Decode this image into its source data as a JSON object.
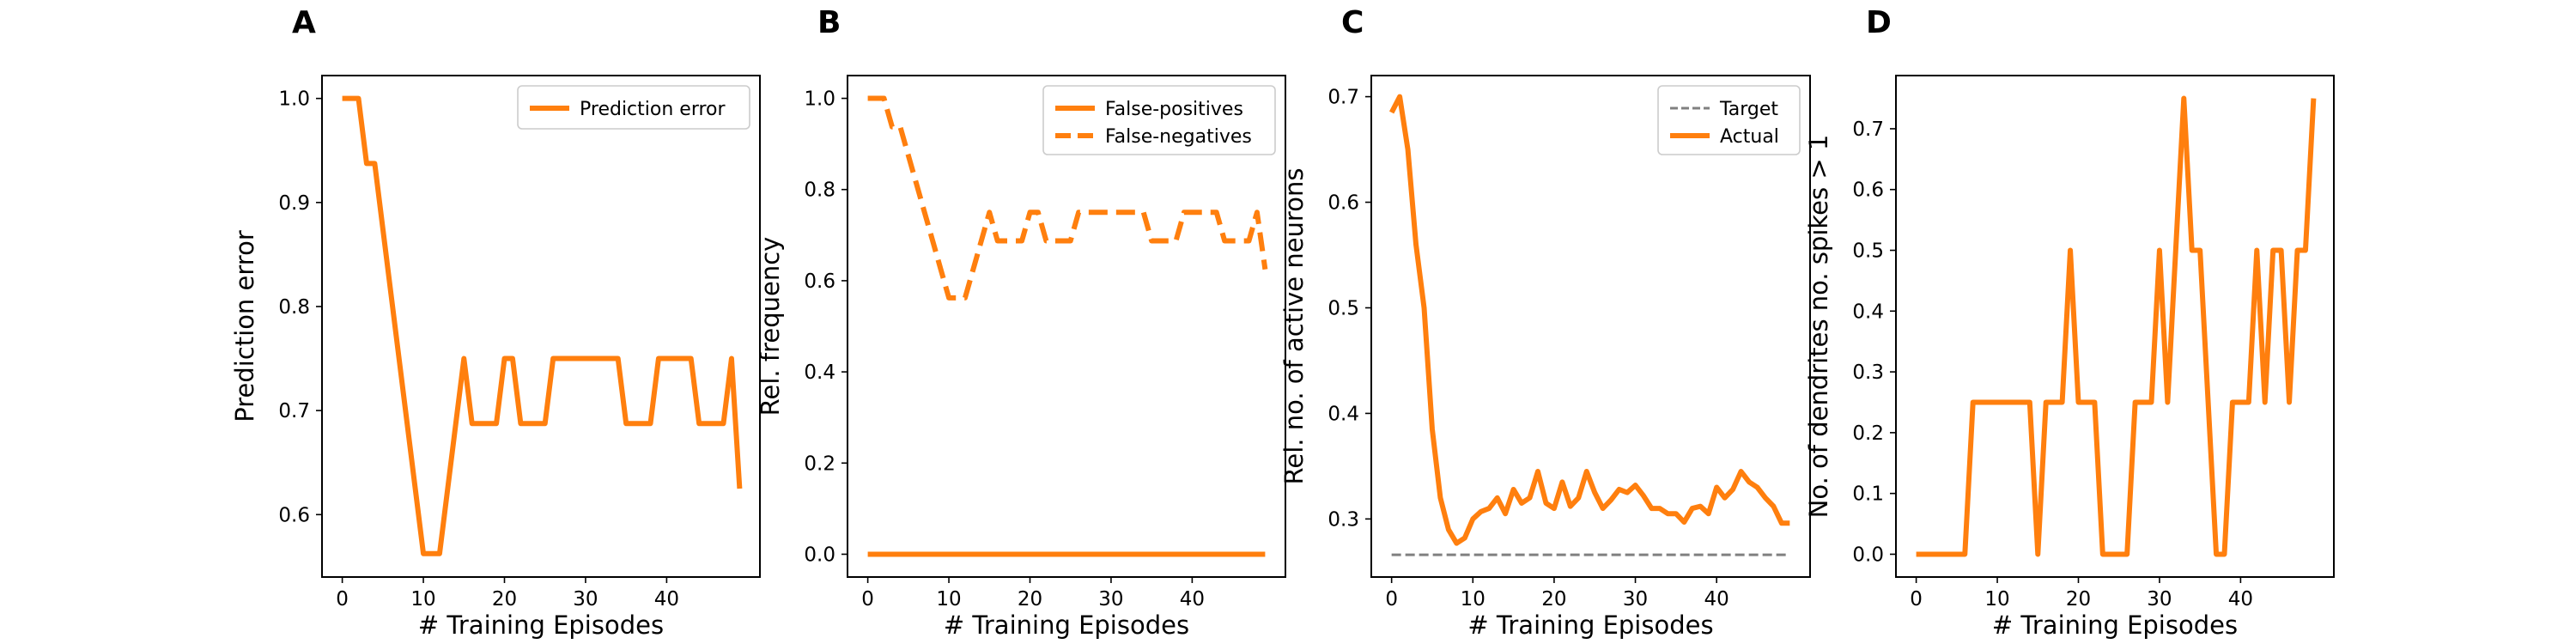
{
  "colors": {
    "series": "#ff7f0e",
    "target": "#808080"
  },
  "chart_data": [
    {
      "type": "line",
      "panel_label": "A",
      "xlabel": "# Training Episodes",
      "ylabel": "Prediction error",
      "xlim": [
        -2.5,
        51.5
      ],
      "ylim": [
        0.54,
        1.022
      ],
      "xticks": [
        0,
        10,
        20,
        30,
        40
      ],
      "xtick_labels": [
        "0",
        "10",
        "20",
        "30",
        "40"
      ],
      "yticks": [
        0.6,
        0.7,
        0.8,
        0.9,
        1.0
      ],
      "ytick_labels": [
        "0.6",
        "0.7",
        "0.8",
        "0.9",
        "1.0"
      ],
      "legend": "top-right",
      "series": [
        {
          "name": "Prediction error",
          "style": "solid",
          "x": [
            0,
            1,
            2,
            3,
            4,
            5,
            6,
            7,
            8,
            9,
            10,
            11,
            12,
            13,
            14,
            15,
            16,
            17,
            18,
            19,
            20,
            21,
            22,
            23,
            24,
            25,
            26,
            27,
            28,
            29,
            30,
            31,
            32,
            33,
            34,
            35,
            36,
            37,
            38,
            39,
            40,
            41,
            42,
            43,
            44,
            45,
            46,
            47,
            48,
            49
          ],
          "y": [
            1.0,
            1.0,
            1.0,
            0.9375,
            0.9375,
            0.875,
            0.8125,
            0.75,
            0.6875,
            0.625,
            0.5625,
            0.5625,
            0.5625,
            0.625,
            0.6875,
            0.75,
            0.6875,
            0.6875,
            0.6875,
            0.6875,
            0.75,
            0.75,
            0.6875,
            0.6875,
            0.6875,
            0.6875,
            0.75,
            0.75,
            0.75,
            0.75,
            0.75,
            0.75,
            0.75,
            0.75,
            0.75,
            0.6875,
            0.6875,
            0.6875,
            0.6875,
            0.75,
            0.75,
            0.75,
            0.75,
            0.75,
            0.6875,
            0.6875,
            0.6875,
            0.6875,
            0.75,
            0.625
          ]
        }
      ]
    },
    {
      "type": "line",
      "panel_label": "B",
      "xlabel": "# Training Episodes",
      "ylabel": "Rel. frequency",
      "xlim": [
        -2.5,
        51.5
      ],
      "ylim": [
        -0.05,
        1.05
      ],
      "xticks": [
        0,
        10,
        20,
        30,
        40
      ],
      "xtick_labels": [
        "0",
        "10",
        "20",
        "30",
        "40"
      ],
      "yticks": [
        0.0,
        0.2,
        0.4,
        0.6,
        0.8,
        1.0
      ],
      "ytick_labels": [
        "0.0",
        "0.2",
        "0.4",
        "0.6",
        "0.8",
        "1.0"
      ],
      "legend": "top-right",
      "series": [
        {
          "name": "False-positives",
          "style": "solid",
          "x": [
            0,
            1,
            2,
            3,
            4,
            5,
            6,
            7,
            8,
            9,
            10,
            11,
            12,
            13,
            14,
            15,
            16,
            17,
            18,
            19,
            20,
            21,
            22,
            23,
            24,
            25,
            26,
            27,
            28,
            29,
            30,
            31,
            32,
            33,
            34,
            35,
            36,
            37,
            38,
            39,
            40,
            41,
            42,
            43,
            44,
            45,
            46,
            47,
            48,
            49
          ],
          "y": [
            0,
            0,
            0,
            0,
            0,
            0,
            0,
            0,
            0,
            0,
            0,
            0,
            0,
            0,
            0,
            0,
            0,
            0,
            0,
            0,
            0,
            0,
            0,
            0,
            0,
            0,
            0,
            0,
            0,
            0,
            0,
            0,
            0,
            0,
            0,
            0,
            0,
            0,
            0,
            0,
            0,
            0,
            0,
            0,
            0,
            0,
            0,
            0,
            0,
            0
          ]
        },
        {
          "name": "False-negatives",
          "style": "dashed",
          "x": [
            0,
            1,
            2,
            3,
            4,
            5,
            6,
            7,
            8,
            9,
            10,
            11,
            12,
            13,
            14,
            15,
            16,
            17,
            18,
            19,
            20,
            21,
            22,
            23,
            24,
            25,
            26,
            27,
            28,
            29,
            30,
            31,
            32,
            33,
            34,
            35,
            36,
            37,
            38,
            39,
            40,
            41,
            42,
            43,
            44,
            45,
            46,
            47,
            48,
            49
          ],
          "y": [
            1.0,
            1.0,
            1.0,
            0.9375,
            0.9375,
            0.875,
            0.8125,
            0.75,
            0.6875,
            0.625,
            0.5625,
            0.5625,
            0.5625,
            0.625,
            0.6875,
            0.75,
            0.6875,
            0.6875,
            0.6875,
            0.6875,
            0.75,
            0.75,
            0.6875,
            0.6875,
            0.6875,
            0.6875,
            0.75,
            0.75,
            0.75,
            0.75,
            0.75,
            0.75,
            0.75,
            0.75,
            0.75,
            0.6875,
            0.6875,
            0.6875,
            0.6875,
            0.75,
            0.75,
            0.75,
            0.75,
            0.75,
            0.6875,
            0.6875,
            0.6875,
            0.6875,
            0.75,
            0.625
          ]
        }
      ]
    },
    {
      "type": "line",
      "panel_label": "C",
      "xlabel": "# Training Episodes",
      "ylabel": "Rel. no. of active neurons",
      "xlim": [
        -2.5,
        51.5
      ],
      "ylim": [
        0.245,
        0.72
      ],
      "xticks": [
        0,
        10,
        20,
        30,
        40
      ],
      "xtick_labels": [
        "0",
        "10",
        "20",
        "30",
        "40"
      ],
      "yticks": [
        0.3,
        0.4,
        0.5,
        0.6,
        0.7
      ],
      "ytick_labels": [
        "0.3",
        "0.4",
        "0.5",
        "0.6",
        "0.7"
      ],
      "legend": "top-right",
      "series": [
        {
          "name": "Target",
          "style": "dashed-gray",
          "x": [
            0,
            49
          ],
          "y": [
            0.266,
            0.266
          ]
        },
        {
          "name": "Actual",
          "style": "solid",
          "x": [
            0,
            1,
            2,
            3,
            4,
            5,
            6,
            7,
            8,
            9,
            10,
            11,
            12,
            13,
            14,
            15,
            16,
            17,
            18,
            19,
            20,
            21,
            22,
            23,
            24,
            25,
            26,
            27,
            28,
            29,
            30,
            31,
            32,
            33,
            34,
            35,
            36,
            37,
            38,
            39,
            40,
            41,
            42,
            43,
            44,
            45,
            46,
            47,
            48,
            49
          ],
          "y": [
            0.685,
            0.7,
            0.65,
            0.56,
            0.5,
            0.385,
            0.32,
            0.29,
            0.277,
            0.282,
            0.3,
            0.307,
            0.31,
            0.32,
            0.305,
            0.328,
            0.315,
            0.32,
            0.345,
            0.315,
            0.31,
            0.335,
            0.312,
            0.32,
            0.345,
            0.325,
            0.31,
            0.318,
            0.328,
            0.325,
            0.332,
            0.322,
            0.31,
            0.31,
            0.305,
            0.305,
            0.297,
            0.31,
            0.312,
            0.305,
            0.33,
            0.32,
            0.328,
            0.345,
            0.335,
            0.33,
            0.32,
            0.312,
            0.296,
            0.296
          ]
        }
      ]
    },
    {
      "type": "line",
      "panel_label": "D",
      "xlabel": "# Training Episodes",
      "ylabel": "No. of dendrites no. spikes > 1",
      "xlim": [
        -2.5,
        51.5
      ],
      "ylim": [
        -0.0375,
        0.7875
      ],
      "xticks": [
        0,
        10,
        20,
        30,
        40
      ],
      "xtick_labels": [
        "0",
        "10",
        "20",
        "30",
        "40"
      ],
      "yticks": [
        0.0,
        0.1,
        0.2,
        0.3,
        0.4,
        0.5,
        0.6,
        0.7
      ],
      "ytick_labels": [
        "0.0",
        "0.1",
        "0.2",
        "0.3",
        "0.4",
        "0.5",
        "0.6",
        "0.7"
      ],
      "legend": "none",
      "series": [
        {
          "style": "solid",
          "x": [
            0,
            1,
            2,
            3,
            4,
            5,
            6,
            7,
            8,
            9,
            10,
            11,
            12,
            13,
            14,
            15,
            16,
            17,
            18,
            19,
            20,
            21,
            22,
            23,
            24,
            25,
            26,
            27,
            28,
            29,
            30,
            31,
            32,
            33,
            34,
            35,
            36,
            37,
            38,
            39,
            40,
            41,
            42,
            43,
            44,
            45,
            46,
            47,
            48,
            49
          ],
          "y": [
            0,
            0,
            0,
            0,
            0,
            0,
            0,
            0.25,
            0.25,
            0.25,
            0.25,
            0.25,
            0.25,
            0.25,
            0.25,
            0,
            0.25,
            0.25,
            0.25,
            0.5,
            0.25,
            0.25,
            0.25,
            0,
            0,
            0,
            0,
            0.25,
            0.25,
            0.25,
            0.5,
            0.25,
            0.5,
            0.75,
            0.5,
            0.5,
            0.25,
            0,
            0,
            0.25,
            0.25,
            0.25,
            0.5,
            0.25,
            0.5,
            0.5,
            0.25,
            0.5,
            0.5,
            0.75
          ]
        }
      ]
    }
  ]
}
